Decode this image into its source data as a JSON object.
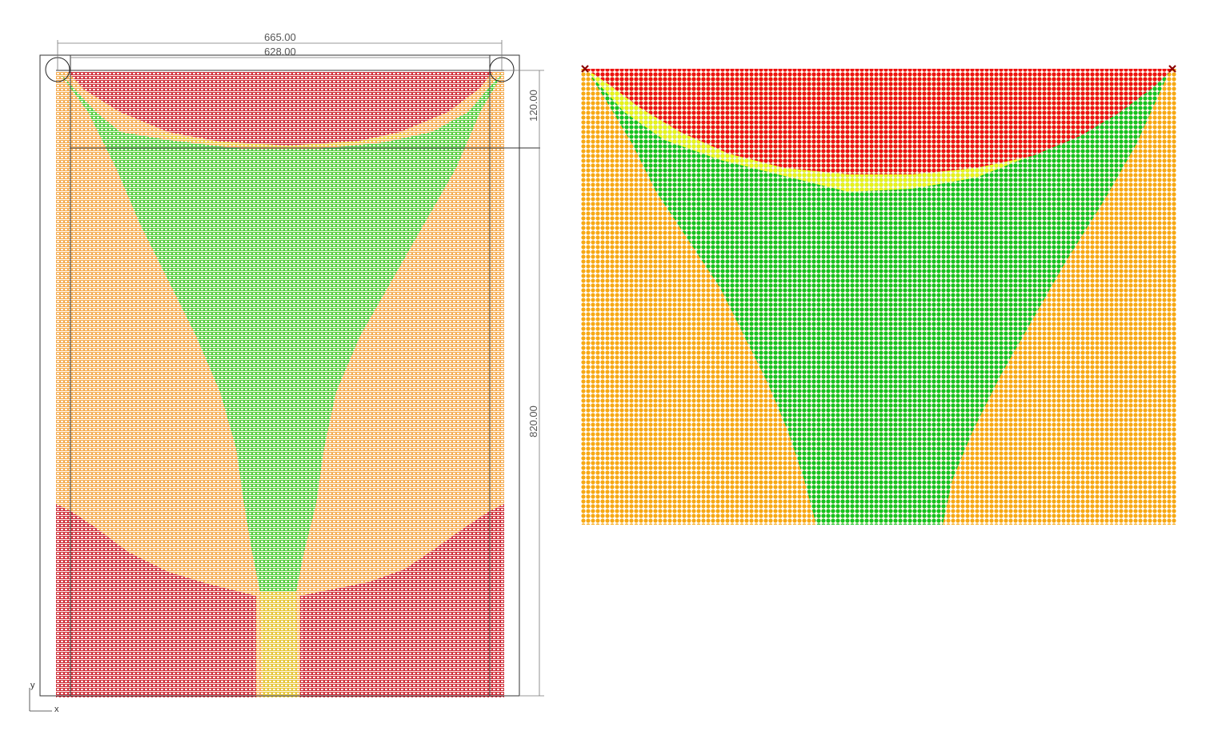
{
  "left_view": {
    "dimensions": {
      "outer_width": "665.00",
      "inner_width": "628.00",
      "top_height": "120.00",
      "main_height": "820.00"
    },
    "axis": {
      "x_label": "x",
      "y_label": "y"
    }
  },
  "legend_colors": {
    "tension_high": "#d40e2a",
    "compression_low": "#f39a2b",
    "neutral": "#2dd62d",
    "transition": "#e6d12a"
  },
  "right_view": {
    "colors": {
      "red": "#ee1111",
      "yellow": "#e8f218",
      "green": "#16c21f",
      "orange": "#f7a814"
    },
    "support_markers": [
      "support-left-icon",
      "support-right-icon"
    ]
  }
}
